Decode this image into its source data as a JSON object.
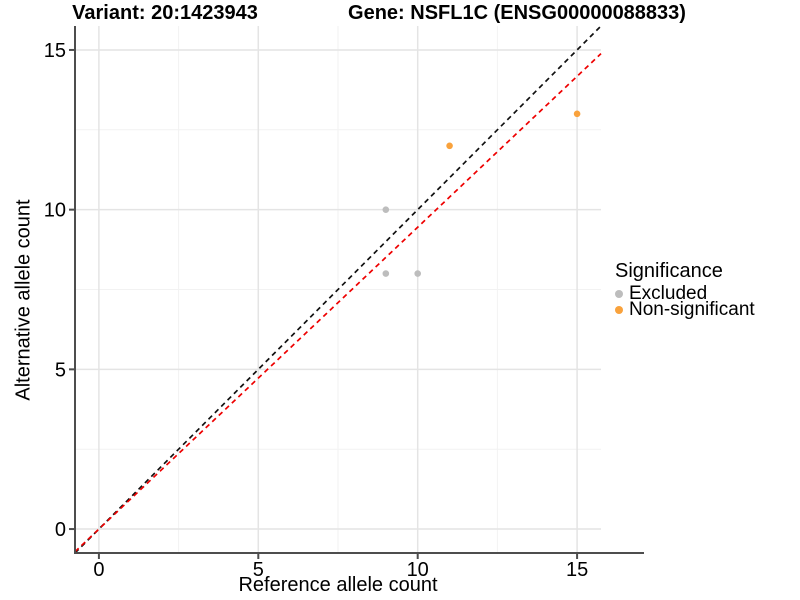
{
  "chart_data": {
    "type": "scatter",
    "title_left": "Variant: 20:1423943",
    "title_right": "Gene: NSFL1C (ENSG00000088833)",
    "xlabel": "Reference allele count",
    "ylabel": "Alternative allele count",
    "xlim": [
      -0.75,
      15.75
    ],
    "ylim": [
      -0.75,
      15.75
    ],
    "xticks": [
      0,
      5,
      10,
      15
    ],
    "yticks": [
      0,
      5,
      10,
      15
    ],
    "xticks_minor": [
      2.5,
      7.5,
      12.5
    ],
    "yticks_minor": [
      2.5,
      7.5,
      12.5
    ],
    "grid": "major+minor",
    "legend": {
      "title": "Significance",
      "position": "right",
      "entries": [
        {
          "label": "Excluded",
          "color": "#BDBDBD"
        },
        {
          "label": "Non-significant",
          "color": "#F9A23C"
        }
      ]
    },
    "series": [
      {
        "name": "Excluded",
        "color": "#BDBDBD",
        "points": [
          [
            9,
            10
          ],
          [
            9,
            8
          ],
          [
            10,
            8
          ]
        ]
      },
      {
        "name": "Non-significant",
        "color": "#F9A23C",
        "points": [
          [
            11,
            12
          ],
          [
            15,
            13
          ]
        ]
      }
    ],
    "lines": [
      {
        "name": "identity",
        "slope": 1,
        "intercept": 0,
        "color": "#111111",
        "style": "dashed"
      },
      {
        "name": "fit",
        "slope": 0.945,
        "intercept": 0,
        "color": "#EE0000",
        "style": "dashed"
      }
    ],
    "colors": {
      "background": "#FFFFFF",
      "axis_line": "#4D4D4D",
      "grid_major": "#E4E4E4",
      "grid_minor": "#F2F2F2",
      "text": "#000000"
    }
  }
}
